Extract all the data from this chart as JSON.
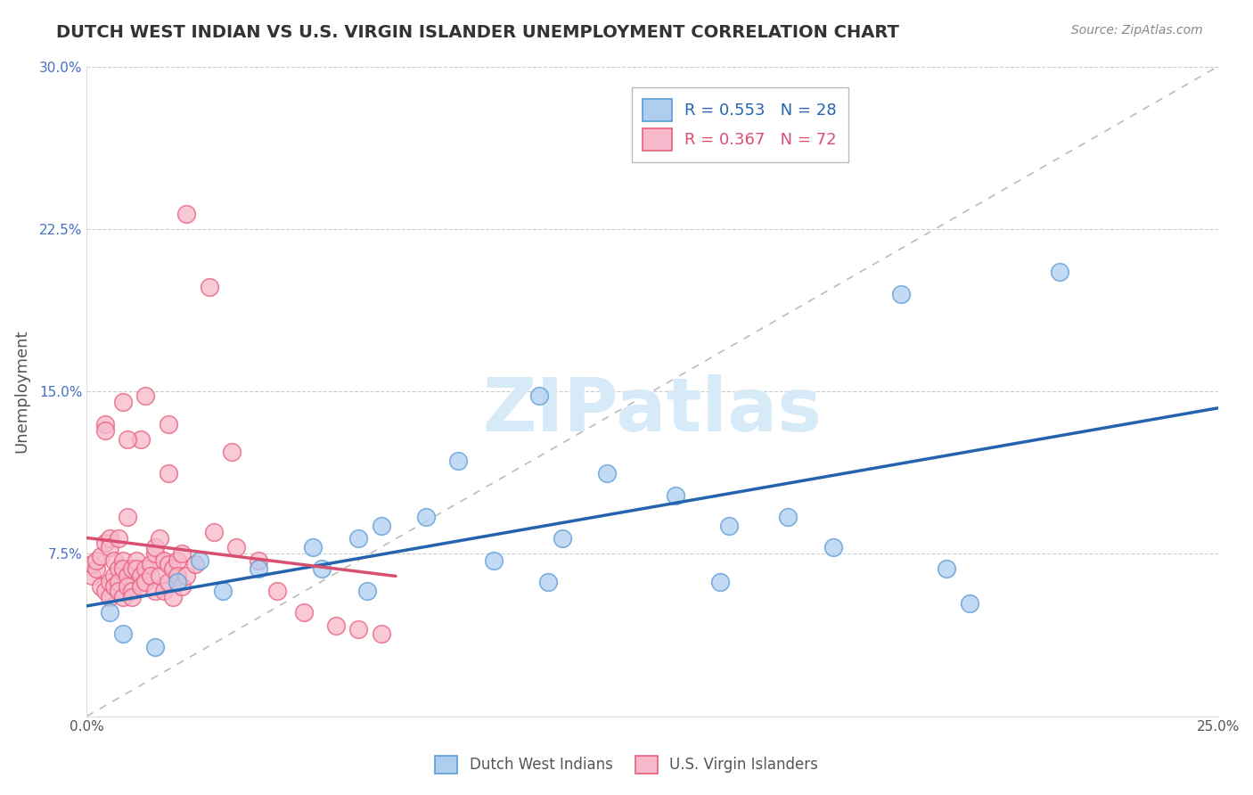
{
  "title": "DUTCH WEST INDIAN VS U.S. VIRGIN ISLANDER UNEMPLOYMENT CORRELATION CHART",
  "source": "Source: ZipAtlas.com",
  "ylabel": "Unemployment",
  "xlim": [
    0.0,
    0.25
  ],
  "ylim": [
    0.0,
    0.3
  ],
  "blue_label": "Dutch West Indians",
  "pink_label": "U.S. Virgin Islanders",
  "blue_R": "R = 0.553",
  "blue_N": "N = 28",
  "pink_R": "R = 0.367",
  "pink_N": "N = 72",
  "blue_fill_color": "#AECEF0",
  "pink_fill_color": "#F7B8CC",
  "blue_edge_color": "#5B9BD5",
  "pink_edge_color": "#E8607A",
  "blue_line_color": "#2563AE",
  "pink_line_color": "#D94F72",
  "ref_line_color": "#BBBBBB",
  "title_color": "#333333",
  "tick_color_y": "#4472C4",
  "tick_color_x": "#555555",
  "watermark_color": "#D6EAF8",
  "blue_scatter_x": [
    0.005,
    0.008,
    0.015,
    0.02,
    0.025,
    0.03,
    0.038,
    0.05,
    0.06,
    0.065,
    0.075,
    0.09,
    0.1,
    0.105,
    0.115,
    0.13,
    0.14,
    0.155,
    0.165,
    0.18,
    0.195,
    0.215,
    0.052,
    0.062,
    0.082,
    0.102,
    0.142,
    0.19
  ],
  "blue_scatter_y": [
    0.048,
    0.038,
    0.032,
    0.062,
    0.072,
    0.058,
    0.068,
    0.078,
    0.082,
    0.088,
    0.092,
    0.072,
    0.148,
    0.082,
    0.112,
    0.102,
    0.062,
    0.092,
    0.078,
    0.195,
    0.052,
    0.205,
    0.068,
    0.058,
    0.118,
    0.062,
    0.088,
    0.068
  ],
  "pink_scatter_x": [
    0.001,
    0.001,
    0.002,
    0.002,
    0.003,
    0.003,
    0.004,
    0.004,
    0.005,
    0.005,
    0.005,
    0.005,
    0.006,
    0.006,
    0.006,
    0.007,
    0.007,
    0.007,
    0.008,
    0.008,
    0.008,
    0.009,
    0.009,
    0.01,
    0.01,
    0.01,
    0.011,
    0.011,
    0.012,
    0.012,
    0.013,
    0.013,
    0.014,
    0.014,
    0.015,
    0.015,
    0.015,
    0.016,
    0.016,
    0.017,
    0.017,
    0.018,
    0.018,
    0.019,
    0.019,
    0.02,
    0.02,
    0.021,
    0.021,
    0.022,
    0.008,
    0.012,
    0.018,
    0.024,
    0.028,
    0.004,
    0.009,
    0.033,
    0.038,
    0.042,
    0.048,
    0.055,
    0.06,
    0.065,
    0.022,
    0.027,
    0.032,
    0.013,
    0.018,
    0.009,
    0.004,
    0.007
  ],
  "pink_scatter_y": [
    0.065,
    0.07,
    0.068,
    0.072,
    0.074,
    0.06,
    0.058,
    0.08,
    0.082,
    0.078,
    0.062,
    0.055,
    0.072,
    0.065,
    0.06,
    0.068,
    0.062,
    0.058,
    0.072,
    0.068,
    0.055,
    0.065,
    0.06,
    0.068,
    0.058,
    0.055,
    0.072,
    0.068,
    0.065,
    0.06,
    0.068,
    0.062,
    0.07,
    0.065,
    0.075,
    0.078,
    0.058,
    0.082,
    0.065,
    0.072,
    0.058,
    0.062,
    0.07,
    0.068,
    0.055,
    0.072,
    0.065,
    0.075,
    0.06,
    0.065,
    0.145,
    0.128,
    0.135,
    0.07,
    0.085,
    0.135,
    0.128,
    0.078,
    0.072,
    0.058,
    0.048,
    0.042,
    0.04,
    0.038,
    0.232,
    0.198,
    0.122,
    0.148,
    0.112,
    0.092,
    0.132,
    0.082
  ]
}
